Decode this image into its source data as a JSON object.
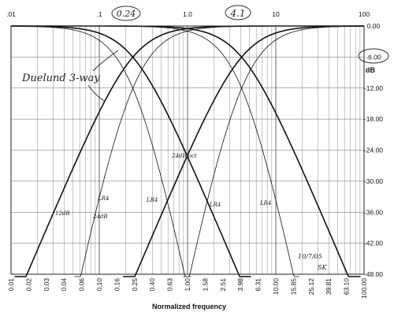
{
  "chart_data": {
    "type": "line",
    "title": "",
    "xlabel": "Normalized frequency",
    "ylabel": "dB",
    "x_scale": "log",
    "xlim": [
      0.01,
      100
    ],
    "ylim": [
      -48,
      0
    ],
    "grid": true,
    "x_tick_labels": [
      "0.01",
      "0.02",
      "0.03",
      "0.04",
      "0.06",
      "0.10",
      "0.16",
      "0.25",
      "0.40",
      "0.63",
      "1.00",
      "1.58",
      "2.51",
      "3.98",
      "6.31",
      "10.00",
      "15.85",
      "25.12",
      "39.81",
      "63.10",
      "100.00"
    ],
    "x_tick_values": [
      0.01,
      0.01585,
      0.02512,
      0.03981,
      0.0631,
      0.1,
      0.1585,
      0.2512,
      0.3981,
      0.631,
      1.0,
      1.585,
      2.512,
      3.981,
      6.31,
      10.0,
      15.85,
      25.12,
      39.81,
      63.1,
      100.0
    ],
    "x_top_labels": [
      ".01",
      ".1",
      "1.0",
      "10",
      "100"
    ],
    "x_top_values": [
      0.01,
      0.1,
      1.0,
      10,
      100
    ],
    "y_ticks": [
      0,
      -6,
      -12,
      -18,
      -24,
      -30,
      -36,
      -42,
      -48
    ],
    "y_tick_labels": [
      "0.00",
      "-6.00",
      "-12.00",
      "-18.00",
      "-24.00",
      "-30.00",
      "-36.00",
      "-42.00",
      "-48.00"
    ],
    "series": [
      {
        "name": "",
        "kind": "lowpass",
        "fc": 0.24,
        "order": 2,
        "values_note": ""
      },
      {
        "name": "",
        "kind": "highpass",
        "fc": 0.24,
        "order": 2
      },
      {
        "name": "",
        "kind": "lowpass",
        "fc": 4.1,
        "order": 2
      },
      {
        "name": "",
        "kind": "highpass",
        "fc": 4.1,
        "order": 2
      },
      {
        "name": "",
        "kind": "lowpass",
        "fc": 0.24,
        "order": 4
      },
      {
        "name": "",
        "kind": "highpass",
        "fc": 0.24,
        "order": 4
      },
      {
        "name": "",
        "kind": "lowpass",
        "fc": 4.1,
        "order": 4
      },
      {
        "name": "",
        "kind": "highpass",
        "fc": 4.1,
        "order": 4
      }
    ],
    "annotations": {
      "top_circled_1": "0.24",
      "top_circled_2": "4.1",
      "right_circled": "-6.00",
      "duelund": "Duelund 3-way",
      "lr4_a": "LR4",
      "lr4_b": "LR4",
      "lr4_c": "LR4",
      "lr4_d": "LR4",
      "db12": "12dB",
      "db24": "24dB",
      "db24_b": "24dB/oct",
      "date": "10/7/05",
      "initials": "SK"
    }
  }
}
